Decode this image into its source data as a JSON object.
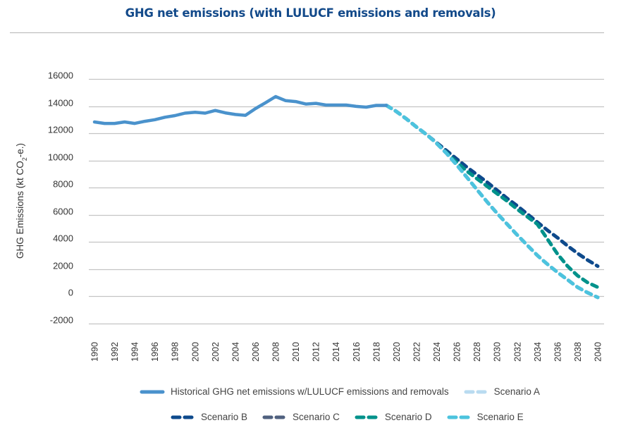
{
  "chart_data": {
    "type": "line",
    "title": "GHG net emissions (with LULUCF emissions and removals)",
    "xlabel": "",
    "ylabel": "GHG Emissions (kt CO2-e.)",
    "ylabel_parts": {
      "pre": "GHG Emissions (kt CO",
      "sub": "2",
      "post": "-e.)"
    },
    "ylim": [
      -2000,
      16000
    ],
    "yticks": [
      -2000,
      0,
      2000,
      4000,
      6000,
      8000,
      10000,
      12000,
      14000,
      16000
    ],
    "xlim": [
      1990,
      2040
    ],
    "xticks": [
      1990,
      1992,
      1994,
      1996,
      1998,
      2000,
      2002,
      2004,
      2006,
      2008,
      2010,
      2012,
      2014,
      2016,
      2018,
      2020,
      2022,
      2024,
      2026,
      2028,
      2030,
      2032,
      2034,
      2036,
      2038,
      2040
    ],
    "grid": true,
    "legend_position": "bottom",
    "series": [
      {
        "name": "Historical GHG net emissions w/LULUCF emissions and removals",
        "style": "solid",
        "color": "#4a92cc",
        "x": [
          1990,
          1991,
          1992,
          1993,
          1994,
          1995,
          1996,
          1997,
          1998,
          1999,
          2000,
          2001,
          2002,
          2003,
          2004,
          2005,
          2006,
          2007,
          2008,
          2009,
          2010,
          2011,
          2012,
          2013,
          2014,
          2015,
          2016,
          2017,
          2018,
          2019
        ],
        "values": [
          12830,
          12720,
          12720,
          12830,
          12720,
          12880,
          13000,
          13180,
          13300,
          13480,
          13550,
          13480,
          13680,
          13500,
          13380,
          13320,
          13820,
          14250,
          14700,
          14400,
          14330,
          14150,
          14200,
          14080,
          14080,
          14080,
          13980,
          13920,
          14050,
          14050
        ]
      },
      {
        "name": "Scenario A",
        "style": "dashed",
        "color": "#b9dbf0",
        "x": [
          2019,
          2020,
          2021,
          2022,
          2023,
          2024,
          2025,
          2026,
          2027,
          2028,
          2029,
          2030,
          2031,
          2032,
          2033,
          2034,
          2035,
          2036,
          2037,
          2038,
          2039,
          2040
        ],
        "values": [
          14050,
          13600,
          13050,
          12450,
          11900,
          11250,
          10500,
          9650,
          8750,
          7850,
          6950,
          6100,
          5300,
          4500,
          3750,
          3000,
          2350,
          1750,
          1200,
          650,
          250,
          -100
        ]
      },
      {
        "name": "Scenario B",
        "style": "dashed",
        "color": "#0e4a8c",
        "x": [
          2019,
          2020,
          2021,
          2022,
          2023,
          2024,
          2025,
          2026,
          2027,
          2028,
          2029,
          2030,
          2031,
          2032,
          2033,
          2034,
          2035,
          2036,
          2037,
          2038,
          2039,
          2040
        ],
        "values": [
          14050,
          13600,
          13050,
          12450,
          11900,
          11300,
          10700,
          10100,
          9500,
          8950,
          8400,
          7800,
          7200,
          6650,
          6050,
          5450,
          4850,
          4300,
          3700,
          3150,
          2650,
          2200
        ]
      },
      {
        "name": "Scenario C",
        "style": "dashed",
        "color": "#50617f",
        "x": [
          2019,
          2020,
          2021,
          2022,
          2023,
          2024,
          2025,
          2026,
          2027,
          2028,
          2029,
          2030,
          2031,
          2032,
          2033,
          2034,
          2035,
          2036,
          2037,
          2038,
          2039,
          2040
        ],
        "values": [
          14050,
          13600,
          13050,
          12450,
          11900,
          11250,
          10500,
          9650,
          8750,
          7850,
          6950,
          6100,
          5300,
          4500,
          3750,
          3000,
          2350,
          1750,
          1200,
          650,
          250,
          -100
        ]
      },
      {
        "name": "Scenario D",
        "style": "dashed",
        "color": "#00928b",
        "x": [
          2019,
          2020,
          2021,
          2022,
          2023,
          2024,
          2025,
          2026,
          2027,
          2028,
          2029,
          2030,
          2031,
          2032,
          2033,
          2034,
          2035,
          2036,
          2037,
          2038,
          2039,
          2040
        ],
        "values": [
          14050,
          13600,
          13050,
          12450,
          11900,
          11250,
          10550,
          9850,
          9200,
          8650,
          8100,
          7550,
          7000,
          6400,
          5850,
          5300,
          4200,
          3100,
          2200,
          1500,
          1000,
          650
        ]
      },
      {
        "name": "Scenario E",
        "style": "dashed",
        "color": "#4cc3de",
        "x": [
          2019,
          2020,
          2021,
          2022,
          2023,
          2024,
          2025,
          2026,
          2027,
          2028,
          2029,
          2030,
          2031,
          2032,
          2033,
          2034,
          2035,
          2036,
          2037,
          2038,
          2039,
          2040
        ],
        "values": [
          14050,
          13600,
          13050,
          12450,
          11900,
          11250,
          10500,
          9650,
          8750,
          7850,
          6950,
          6100,
          5300,
          4500,
          3750,
          3000,
          2350,
          1750,
          1200,
          650,
          250,
          -100
        ]
      }
    ]
  },
  "legend": {
    "row1": [
      {
        "label": "Historical GHG net emissions w/LULUCF emissions and removals",
        "color": "#4a92cc",
        "style": "solid"
      },
      {
        "label": "Scenario A",
        "color": "#b9dbf0",
        "style": "dashed"
      }
    ],
    "row2": [
      {
        "label": "Scenario B",
        "color": "#0e4a8c",
        "style": "dashed"
      },
      {
        "label": "Scenario C",
        "color": "#50617f",
        "style": "dashed"
      },
      {
        "label": "Scenario D",
        "color": "#00928b",
        "style": "dashed"
      },
      {
        "label": "Scenario E",
        "color": "#4cc3de",
        "style": "dashed"
      }
    ]
  }
}
